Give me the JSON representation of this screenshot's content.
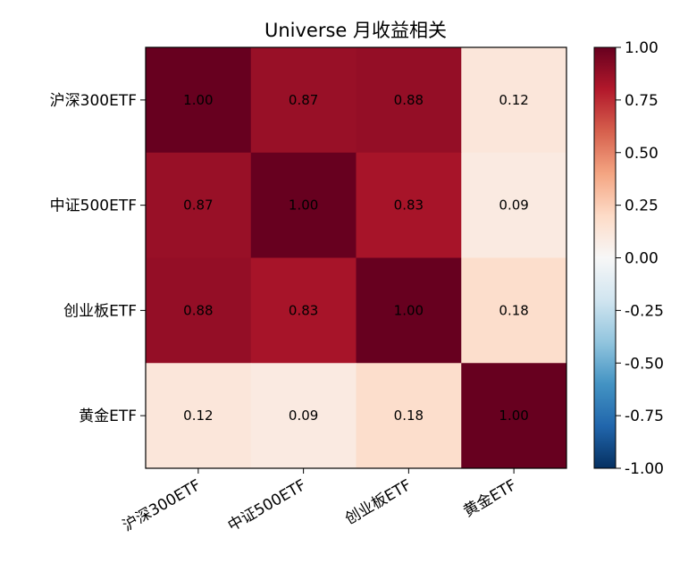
{
  "chart_data": {
    "type": "heatmap",
    "title": "Universe 月收益相关",
    "row_labels": [
      "沪深300ETF",
      "中证500ETF",
      "创业板ETF",
      "黄金ETF"
    ],
    "col_labels": [
      "沪深300ETF",
      "中证500ETF",
      "创业板ETF",
      "黄金ETF"
    ],
    "values": [
      [
        1.0,
        0.87,
        0.88,
        0.12
      ],
      [
        0.87,
        1.0,
        0.83,
        0.09
      ],
      [
        0.88,
        0.83,
        1.0,
        0.18
      ],
      [
        0.12,
        0.09,
        0.18,
        1.0
      ]
    ],
    "cell_labels": [
      [
        "1.00",
        "0.87",
        "0.88",
        "0.12"
      ],
      [
        "0.87",
        "1.00",
        "0.83",
        "0.09"
      ],
      [
        "0.88",
        "0.83",
        "1.00",
        "0.18"
      ],
      [
        "0.12",
        "0.09",
        "0.18",
        "1.00"
      ]
    ],
    "value_range": [
      -1.0,
      1.0
    ],
    "colormap": "RdBu_r",
    "colorbar_ticks": [
      "1.00",
      "0.75",
      "0.50",
      "0.25",
      "0.00",
      "-0.25",
      "-0.50",
      "-0.75",
      "-1.00"
    ],
    "colorbar_tick_values": [
      1.0,
      0.75,
      0.5,
      0.25,
      0.0,
      -0.25,
      -0.5,
      -0.75,
      -1.0
    ],
    "grid": false,
    "colorbar_position": "right"
  }
}
